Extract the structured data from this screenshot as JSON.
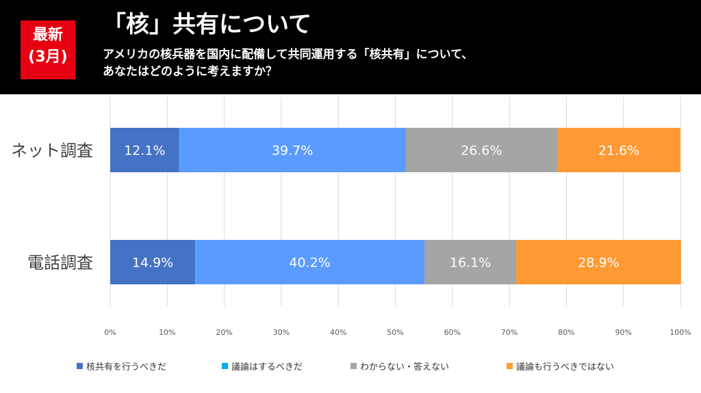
{
  "header": {
    "badge_line1": "最新",
    "badge_line2": "(3月)",
    "title": "「核」共有について",
    "question_line1": "アメリカの核兵器を国内に配備して共同運用する「核共有」について、",
    "question_line2": "あなたはどのように考えますか？"
  },
  "colors": {
    "header_bg": "#000000",
    "badge_bg": "#e60012",
    "series": [
      "#4472c4",
      "#5b9bff",
      "#a5a5a5",
      "#ff9933"
    ],
    "legend_swatch": [
      "#4472c4",
      "#00b0f0",
      "#a5a5a5",
      "#ff9933"
    ]
  },
  "chart_data": {
    "type": "bar",
    "orientation": "horizontal",
    "stacked": "100%",
    "categories": [
      "ネット調査",
      "電話調査"
    ],
    "series": [
      {
        "name": "核共有を行うべきだ",
        "values": [
          12.1,
          14.9
        ],
        "labels": [
          "12.1%",
          "14.9%"
        ]
      },
      {
        "name": "議論はするべきだ",
        "values": [
          39.7,
          40.2
        ],
        "labels": [
          "39.7%",
          "40.2%"
        ]
      },
      {
        "name": "わからない・答えない",
        "values": [
          26.6,
          16.1
        ],
        "labels": [
          "26.6%",
          "16.1%"
        ]
      },
      {
        "name": "議論も行うべきではない",
        "values": [
          21.6,
          28.9
        ],
        "labels": [
          "21.6%",
          "28.9%"
        ]
      }
    ],
    "xlim": [
      0,
      100
    ],
    "xticks": [
      "0%",
      "10%",
      "20%",
      "30%",
      "40%",
      "50%",
      "60%",
      "70%",
      "80%",
      "90%",
      "100%"
    ],
    "grid": true,
    "legend_position": "bottom"
  }
}
